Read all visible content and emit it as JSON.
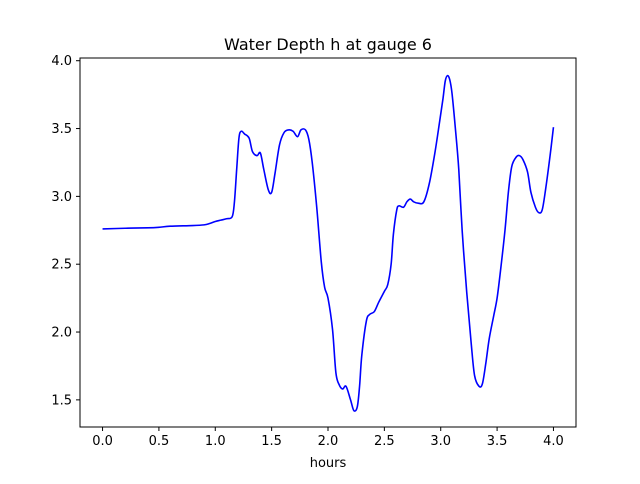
{
  "chart_data": {
    "type": "line",
    "title": "Water Depth h at gauge 6",
    "xlabel": "hours",
    "ylabel": "",
    "xlim": [
      -0.2,
      4.2
    ],
    "ylim": [
      1.3,
      4.02
    ],
    "grid": false,
    "line_color": "#0000ff",
    "x_ticks": [
      {
        "value": 0.0,
        "label": "0.0"
      },
      {
        "value": 0.5,
        "label": "0.5"
      },
      {
        "value": 1.0,
        "label": "1.0"
      },
      {
        "value": 1.5,
        "label": "1.5"
      },
      {
        "value": 2.0,
        "label": "2.0"
      },
      {
        "value": 2.5,
        "label": "2.5"
      },
      {
        "value": 3.0,
        "label": "3.0"
      },
      {
        "value": 3.5,
        "label": "3.5"
      },
      {
        "value": 4.0,
        "label": "4.0"
      }
    ],
    "y_ticks": [
      {
        "value": 1.5,
        "label": "1.5"
      },
      {
        "value": 2.0,
        "label": "2.0"
      },
      {
        "value": 2.5,
        "label": "2.5"
      },
      {
        "value": 3.0,
        "label": "3.0"
      },
      {
        "value": 3.5,
        "label": "3.5"
      },
      {
        "value": 4.0,
        "label": "4.0"
      }
    ],
    "series": [
      {
        "x": [
          0.0,
          0.2,
          0.4,
          0.5,
          0.6,
          0.8,
          0.9,
          0.95,
          1.0,
          1.05,
          1.1,
          1.15,
          1.17,
          1.19,
          1.21,
          1.23,
          1.26,
          1.3,
          1.33,
          1.37,
          1.4,
          1.43,
          1.47,
          1.5,
          1.53,
          1.57,
          1.61,
          1.65,
          1.69,
          1.73,
          1.76,
          1.8,
          1.83,
          1.86,
          1.9,
          1.94,
          1.97,
          2.0,
          2.04,
          2.07,
          2.1,
          2.13,
          2.16,
          2.2,
          2.23,
          2.26,
          2.28,
          2.3,
          2.34,
          2.37,
          2.41,
          2.45,
          2.5,
          2.53,
          2.56,
          2.58,
          2.61,
          2.63,
          2.67,
          2.7,
          2.73,
          2.76,
          2.8,
          2.85,
          2.9,
          2.95,
          2.99,
          3.02,
          3.04,
          3.06,
          3.08,
          3.1,
          3.13,
          3.16,
          3.19,
          3.23,
          3.27,
          3.3,
          3.34,
          3.37,
          3.4,
          3.43,
          3.47,
          3.5,
          3.53,
          3.57,
          3.6,
          3.63,
          3.67,
          3.7,
          3.73,
          3.77,
          3.8,
          3.84,
          3.87,
          3.9,
          3.93,
          3.97,
          4.0
        ],
        "y": [
          2.76,
          2.765,
          2.768,
          2.772,
          2.78,
          2.785,
          2.79,
          2.8,
          2.815,
          2.825,
          2.835,
          2.85,
          2.96,
          3.2,
          3.43,
          3.48,
          3.46,
          3.43,
          3.33,
          3.3,
          3.32,
          3.2,
          3.05,
          3.03,
          3.17,
          3.38,
          3.47,
          3.49,
          3.48,
          3.44,
          3.49,
          3.49,
          3.42,
          3.25,
          2.92,
          2.52,
          2.33,
          2.25,
          2.02,
          1.7,
          1.61,
          1.58,
          1.6,
          1.5,
          1.42,
          1.45,
          1.6,
          1.83,
          2.08,
          2.13,
          2.15,
          2.22,
          2.3,
          2.35,
          2.5,
          2.72,
          2.9,
          2.93,
          2.92,
          2.96,
          2.98,
          2.96,
          2.95,
          2.96,
          3.1,
          3.33,
          3.55,
          3.72,
          3.85,
          3.89,
          3.86,
          3.76,
          3.5,
          3.2,
          2.75,
          2.3,
          1.92,
          1.68,
          1.6,
          1.62,
          1.77,
          1.95,
          2.12,
          2.25,
          2.45,
          2.75,
          3.03,
          3.22,
          3.29,
          3.3,
          3.27,
          3.18,
          3.03,
          2.92,
          2.88,
          2.9,
          3.05,
          3.3,
          3.51
        ]
      }
    ]
  }
}
